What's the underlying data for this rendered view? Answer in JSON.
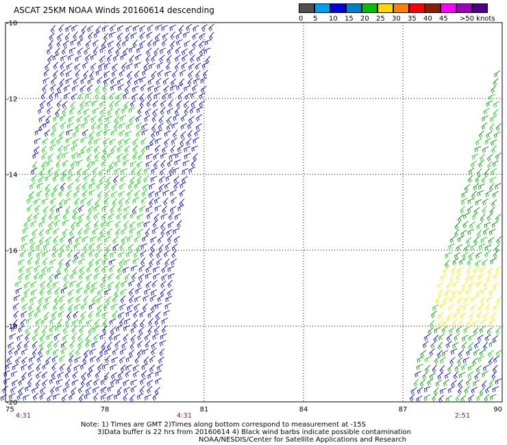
{
  "title": "ASCAT 25KM NOAA Winds 20160614 descending",
  "legend": {
    "colors": [
      "#505050",
      "#00a0f0",
      "#0000e0",
      "#0080c8",
      "#00c000",
      "#ffd800",
      "#ff8000",
      "#ff0000",
      "#8b2000",
      "#ff00ff",
      "#a000c0",
      "#4b0080"
    ],
    "labels": [
      {
        "text": "0",
        "pos": 0
      },
      {
        "text": "5",
        "pos": 1
      },
      {
        "text": "10",
        "pos": 2
      },
      {
        "text": "15",
        "pos": 3
      },
      {
        "text": "20",
        "pos": 4
      },
      {
        "text": "25",
        "pos": 5
      },
      {
        "text": "30",
        "pos": 6
      },
      {
        "text": "35",
        "pos": 7
      },
      {
        "text": "40",
        "pos": 8
      },
      {
        "text": "45",
        "pos": 9
      },
      {
        "text": ">50 knots",
        "pos": 10.3
      }
    ]
  },
  "map": {
    "lat_labels": [
      "-10",
      "-12",
      "-14",
      "-16",
      "-18",
      "-20"
    ],
    "lon_labels": [
      "75",
      "78",
      "81",
      "84",
      "87",
      "90"
    ],
    "time_labels": [
      "4:31",
      "4:31",
      "2:51"
    ],
    "wind_colors": {
      "blue": "#0000d8",
      "green": "#00d800",
      "dark_green": "#009000",
      "yellow": "#f0f000",
      "navy": "#000090"
    }
  },
  "notes": {
    "line1": "Note: 1) Times are GMT 2)Times along bottom correspond to measurement at -15S",
    "line2": "3)Data buffer is 22 hrs from 20160614 4) Black wind barbs indicate possible contamination",
    "line3": "NOAA/NESDIS/Center for Satellite Applications and Research"
  }
}
